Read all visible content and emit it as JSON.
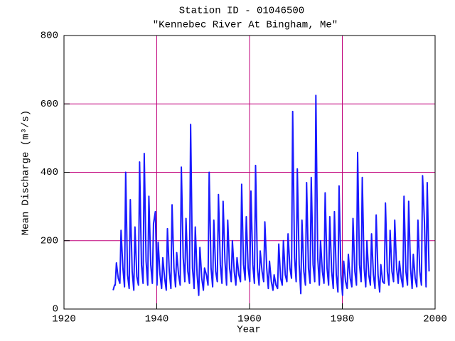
{
  "chart_data": {
    "type": "line",
    "title": "Station ID - 01046500",
    "subtitle": "\"Kennebec River At Bingham, Me\"",
    "x_label": "Year",
    "y_label": "Mean Discharge (m³/s)",
    "color": "#1a1aff",
    "grid": true,
    "grid_color": "#c0007a",
    "xlim": [
      1920,
      2000
    ],
    "xticks": [
      1920,
      1940,
      1960,
      1980,
      2000
    ],
    "ylim": [
      0,
      800
    ],
    "yticks": [
      0,
      200,
      400,
      600,
      800
    ],
    "x": [
      1930.6,
      1930.9,
      1931.05,
      1931.3,
      1931.7,
      1932.05,
      1932.3,
      1932.7,
      1933.05,
      1933.3,
      1933.7,
      1934.05,
      1934.3,
      1934.7,
      1935.05,
      1935.3,
      1935.7,
      1936.05,
      1936.3,
      1936.7,
      1937.05,
      1937.3,
      1937.7,
      1938.05,
      1938.3,
      1938.7,
      1939.05,
      1939.3,
      1939.7,
      1940.05,
      1940.3,
      1940.7,
      1941.05,
      1941.3,
      1941.7,
      1942.05,
      1942.3,
      1942.7,
      1943.05,
      1943.3,
      1943.7,
      1944.05,
      1944.3,
      1944.7,
      1945.05,
      1945.3,
      1945.7,
      1946.05,
      1946.3,
      1946.7,
      1947.05,
      1947.3,
      1947.7,
      1948.05,
      1948.3,
      1948.7,
      1949.05,
      1949.3,
      1949.7,
      1950.05,
      1950.3,
      1950.7,
      1951.05,
      1951.3,
      1951.7,
      1952.05,
      1952.3,
      1952.7,
      1953.05,
      1953.3,
      1953.7,
      1954.05,
      1954.3,
      1954.7,
      1955.05,
      1955.3,
      1955.7,
      1956.05,
      1956.3,
      1956.7,
      1957.05,
      1957.3,
      1957.7,
      1958.05,
      1958.3,
      1958.7,
      1959.05,
      1959.3,
      1959.7,
      1960.05,
      1960.3,
      1960.7,
      1961.05,
      1961.3,
      1961.7,
      1962.05,
      1962.3,
      1962.7,
      1963.05,
      1963.3,
      1963.7,
      1964.05,
      1964.3,
      1964.7,
      1965.05,
      1965.3,
      1965.7,
      1966.05,
      1966.3,
      1966.7,
      1967.05,
      1967.3,
      1967.7,
      1968.05,
      1968.3,
      1968.7,
      1969.05,
      1969.3,
      1969.7,
      1970.05,
      1970.3,
      1970.7,
      1971.05,
      1971.3,
      1971.7,
      1972.05,
      1972.3,
      1972.7,
      1973.05,
      1973.3,
      1973.7,
      1974.05,
      1974.3,
      1974.7,
      1975.05,
      1975.3,
      1975.7,
      1976.05,
      1976.3,
      1976.7,
      1977.05,
      1977.3,
      1977.7,
      1978.05,
      1978.3,
      1978.7,
      1979.05,
      1979.3,
      1979.7,
      1980.05,
      1980.3,
      1980.7,
      1981.05,
      1981.3,
      1981.7,
      1982.05,
      1982.3,
      1982.7,
      1983.05,
      1983.3,
      1983.7,
      1984.05,
      1984.3,
      1984.7,
      1985.05,
      1985.3,
      1985.7,
      1986.05,
      1986.3,
      1986.7,
      1987.05,
      1987.3,
      1987.7,
      1988.05,
      1988.3,
      1988.7,
      1989.05,
      1989.3,
      1989.7,
      1990.05,
      1990.3,
      1990.7,
      1991.05,
      1991.3,
      1991.7,
      1992.05,
      1992.3,
      1992.7,
      1993.05,
      1993.3,
      1993.7,
      1994.05,
      1994.3,
      1994.7,
      1995.05,
      1995.3,
      1995.7,
      1996.05,
      1996.3,
      1996.7,
      1997.05,
      1997.3,
      1997.7,
      1998.05,
      1998.3,
      1998.7
    ],
    "values": [
      55,
      70,
      70,
      135,
      90,
      75,
      230,
      120,
      65,
      400,
      100,
      60,
      320,
      110,
      55,
      240,
      95,
      70,
      430,
      130,
      75,
      455,
      140,
      70,
      330,
      130,
      75,
      250,
      285,
      70,
      195,
      100,
      60,
      150,
      90,
      55,
      235,
      110,
      60,
      305,
      120,
      65,
      165,
      100,
      70,
      415,
      150,
      80,
      265,
      110,
      75,
      540,
      120,
      60,
      240,
      100,
      40,
      180,
      90,
      55,
      120,
      100,
      70,
      400,
      120,
      65,
      260,
      110,
      80,
      335,
      130,
      75,
      315,
      140,
      70,
      260,
      120,
      80,
      200,
      110,
      70,
      150,
      100,
      80,
      365,
      130,
      85,
      270,
      120,
      80,
      345,
      130,
      75,
      420,
      120,
      70,
      170,
      110,
      80,
      255,
      120,
      60,
      140,
      80,
      55,
      100,
      70,
      60,
      190,
      90,
      70,
      200,
      100,
      80,
      220,
      120,
      90,
      578,
      150,
      80,
      410,
      130,
      45,
      260,
      110,
      70,
      370,
      120,
      75,
      385,
      130,
      80,
      625,
      150,
      70,
      200,
      110,
      75,
      340,
      120,
      70,
      270,
      110,
      60,
      285,
      100,
      50,
      360,
      100,
      40,
      140,
      80,
      60,
      160,
      90,
      65,
      265,
      110,
      70,
      458,
      130,
      80,
      385,
      120,
      65,
      200,
      100,
      70,
      220,
      100,
      60,
      275,
      100,
      50,
      130,
      80,
      75,
      310,
      110,
      70,
      230,
      110,
      80,
      260,
      120,
      75,
      140,
      90,
      65,
      330,
      110,
      70,
      315,
      120,
      60,
      160,
      90,
      65,
      260,
      110,
      70,
      390,
      255,
      65,
      370,
      110
    ]
  }
}
